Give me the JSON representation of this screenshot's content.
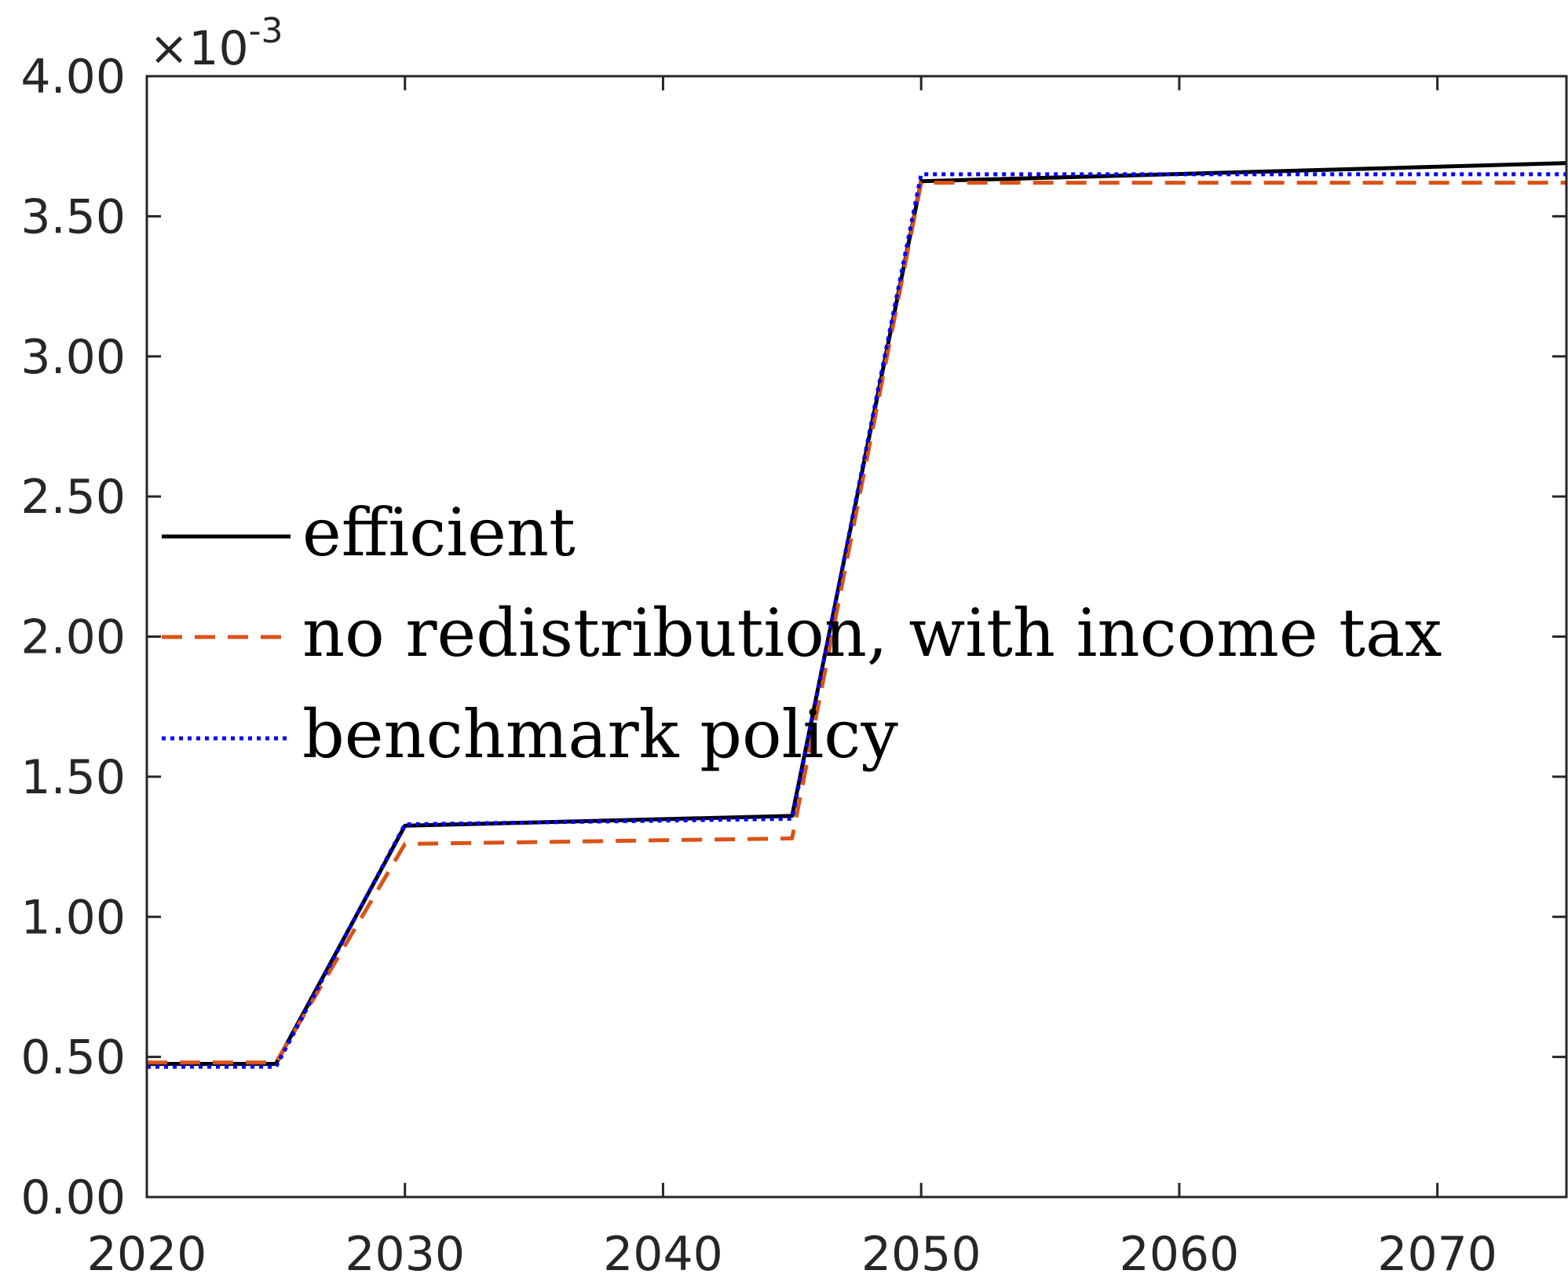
{
  "chart_data": {
    "type": "line",
    "title": "",
    "xlabel": "",
    "ylabel": "",
    "xlim": [
      2020,
      2075
    ],
    "ylim": [
      0,
      0.004
    ],
    "x_ticks": [
      2020,
      2030,
      2040,
      2050,
      2060,
      2070
    ],
    "x_tick_labels": [
      "2020",
      "2030",
      "2040",
      "2050",
      "2060",
      "2070"
    ],
    "y_ticks": [
      0,
      0.0005,
      0.001,
      0.0015,
      0.002,
      0.0025,
      0.003,
      0.0035,
      0.004
    ],
    "y_tick_labels": [
      "0.00",
      "0.50",
      "1.00",
      "1.50",
      "2.00",
      "2.50",
      "3.00",
      "3.50",
      "4.00"
    ],
    "y_exponent": {
      "base": "×10",
      "power": "-3"
    },
    "grid": false,
    "legend_position": "center-left",
    "series": [
      {
        "name": "efficient",
        "color": "#000000",
        "style": "solid",
        "x": [
          2020,
          2025,
          2030,
          2045,
          2050,
          2075
        ],
        "y": [
          0.000475,
          0.000475,
          0.001325,
          0.00136,
          0.003625,
          0.00369
        ]
      },
      {
        "name": "no redistribution, with income tax",
        "color": "#D95319",
        "style": "dashed",
        "x": [
          2020,
          2025,
          2030,
          2045,
          2050,
          2075
        ],
        "y": [
          0.00048,
          0.00048,
          0.00126,
          0.00128,
          0.00362,
          0.00362
        ]
      },
      {
        "name": "benchmark policy",
        "color": "#0000FF",
        "style": "dotted",
        "x": [
          2020,
          2025,
          2030,
          2045,
          2050,
          2075
        ],
        "y": [
          0.000465,
          0.000465,
          0.00133,
          0.00135,
          0.00365,
          0.00365
        ]
      }
    ]
  }
}
